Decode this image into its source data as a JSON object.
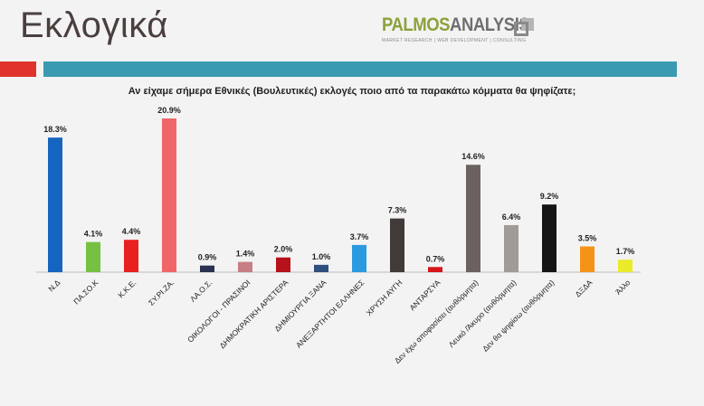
{
  "slide": {
    "title": "Εκλογικά",
    "logo_part1": "PALMOS",
    "logo_part2": "ANALYSIS",
    "logo_tagline": "MARKET RESEARCH | WEB DEVELOPMENT | CONSULTING",
    "question": "Αν είχαμε σήμερα Εθνικές (Βουλευτικές) εκλογές ποιο από τα παρακάτω  κόμματα θα ψηφίζατε;"
  },
  "colors": {
    "band_red": "#e0332c",
    "band_teal": "#3a9bb0"
  },
  "chart_data": {
    "type": "bar",
    "title": "Αν είχαμε σήμερα Εθνικές (Βουλευτικές) εκλογές ποιο από τα παρακάτω  κόμματα θα ψηφίζατε;",
    "categories": [
      "Ν.Δ",
      "ΠΑ.ΣΟ.Κ",
      "Κ.Κ.Ε.",
      "ΣΥ.ΡΙ.ΖΑ.",
      "ΛΑ.Ο.Σ.",
      "ΟΙΚΟΛΟΓΟΙ - ΠΡΑΣΙΝΟΙ",
      "ΔΗΜΟΚΡΑΤΙΚΗ ΑΡΙΣΤΕΡΑ",
      "ΔΗΜΙΟΥΡΓΙΑ ΞΑΝΑ",
      "ΑΝΕΞΑΡΤΗΤΟΙ  ΕΛΛΗΝΕΣ",
      "ΧΡΥΣΗ ΑΥΓΗ",
      "ΑΝΤΑΡΣΥΑ",
      "Δεν έχω αποφασίσει (αυθόρμητα)",
      "Λευκό /Άκυρο (αυθόρμητα)",
      "Δεν θα ψηφίσω (αυθόρμητα)",
      "ΔΞΔΑ",
      "Άλλο"
    ],
    "values": [
      18.3,
      4.1,
      4.4,
      20.9,
      0.9,
      1.4,
      2.0,
      1.0,
      3.7,
      7.3,
      0.7,
      14.6,
      6.4,
      9.2,
      3.5,
      1.7
    ],
    "data_labels": [
      "18.3%",
      "4.1%",
      "4.4%",
      "20.9%",
      "0.9%",
      "1.4%",
      "2.0%",
      "1.0%",
      "3.7%",
      "7.3%",
      "0.7%",
      "14.6%",
      "6.4%",
      "9.2%",
      "3.5%",
      "1.7%"
    ],
    "colors": [
      "#1565c0",
      "#76c043",
      "#e8201f",
      "#f06568",
      "#2b3150",
      "#c67f83",
      "#b5121b",
      "#2f4f7f",
      "#2b9be0",
      "#423a38",
      "#d7151a",
      "#6b6260",
      "#9e9b98",
      "#151515",
      "#f39419",
      "#eaeb2a"
    ],
    "xlabel": "",
    "ylabel": "",
    "ylim": [
      0,
      22
    ],
    "grid": false,
    "legend": "none"
  }
}
